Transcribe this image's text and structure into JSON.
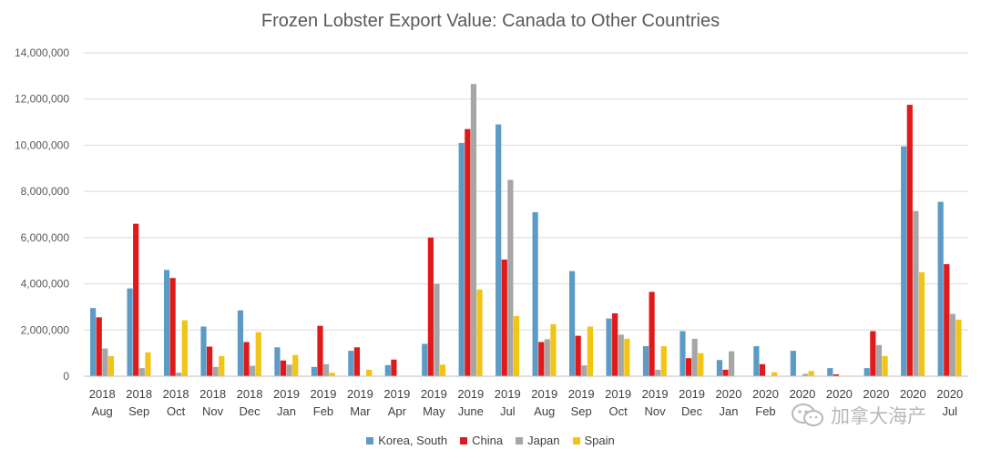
{
  "chart_data": {
    "type": "bar",
    "title": "Frozen Lobster Export Value: Canada to Other Countries",
    "xlabel": "",
    "ylabel": "",
    "ylim": [
      0,
      14000000
    ],
    "yticks": [
      "0",
      "2,000,000",
      "4,000,000",
      "6,000,000",
      "8,000,000",
      "10,000,000",
      "12,000,000",
      "14,000,000"
    ],
    "categories": [
      {
        "year": "2018",
        "month": "Aug"
      },
      {
        "year": "2018",
        "month": "Sep"
      },
      {
        "year": "2018",
        "month": "Oct"
      },
      {
        "year": "2018",
        "month": "Nov"
      },
      {
        "year": "2018",
        "month": "Dec"
      },
      {
        "year": "2019",
        "month": "Jan"
      },
      {
        "year": "2019",
        "month": "Feb"
      },
      {
        "year": "2019",
        "month": "Mar"
      },
      {
        "year": "2019",
        "month": "Apr"
      },
      {
        "year": "2019",
        "month": "May"
      },
      {
        "year": "2019",
        "month": "June"
      },
      {
        "year": "2019",
        "month": "Jul"
      },
      {
        "year": "2019",
        "month": "Aug"
      },
      {
        "year": "2019",
        "month": "Sep"
      },
      {
        "year": "2019",
        "month": "Oct"
      },
      {
        "year": "2019",
        "month": "Nov"
      },
      {
        "year": "2019",
        "month": "Dec"
      },
      {
        "year": "2020",
        "month": "Jan"
      },
      {
        "year": "2020",
        "month": "Feb"
      },
      {
        "year": "2020",
        "month": ""
      },
      {
        "year": "2020",
        "month": ""
      },
      {
        "year": "2020",
        "month": ""
      },
      {
        "year": "2020",
        "month": ""
      },
      {
        "year": "2020",
        "month": "Jul"
      }
    ],
    "series": [
      {
        "name": "Korea, South",
        "color": "#5b9bc5",
        "values": [
          2950000,
          3800000,
          4600000,
          2150000,
          2850000,
          1250000,
          400000,
          1100000,
          480000,
          1400000,
          10100000,
          10900000,
          7100000,
          4550000,
          2500000,
          1300000,
          1950000,
          700000,
          1300000,
          1100000,
          350000,
          350000,
          9950000,
          7550000
        ]
      },
      {
        "name": "China",
        "color": "#e01a1a",
        "values": [
          2550000,
          6600000,
          4250000,
          1280000,
          1480000,
          680000,
          2180000,
          1250000,
          720000,
          6000000,
          10700000,
          5050000,
          1480000,
          1750000,
          2720000,
          3650000,
          780000,
          280000,
          520000,
          0,
          80000,
          1950000,
          11750000,
          4850000
        ]
      },
      {
        "name": "Japan",
        "color": "#a6a6a6",
        "values": [
          1200000,
          350000,
          150000,
          400000,
          450000,
          500000,
          520000,
          0,
          0,
          4000000,
          12650000,
          8500000,
          1600000,
          470000,
          1800000,
          280000,
          1620000,
          1080000,
          0,
          100000,
          0,
          1350000,
          7150000,
          2700000
        ]
      },
      {
        "name": "Spain",
        "color": "#f2c416",
        "values": [
          870000,
          1030000,
          2420000,
          870000,
          1900000,
          920000,
          150000,
          280000,
          0,
          500000,
          3750000,
          2600000,
          2250000,
          2150000,
          1620000,
          1300000,
          1000000,
          0,
          170000,
          230000,
          0,
          870000,
          4500000,
          2450000
        ]
      }
    ],
    "grid": true,
    "legend": "bottom"
  },
  "watermark": {
    "icon": "wechat-icon",
    "text": "加拿大海产"
  }
}
